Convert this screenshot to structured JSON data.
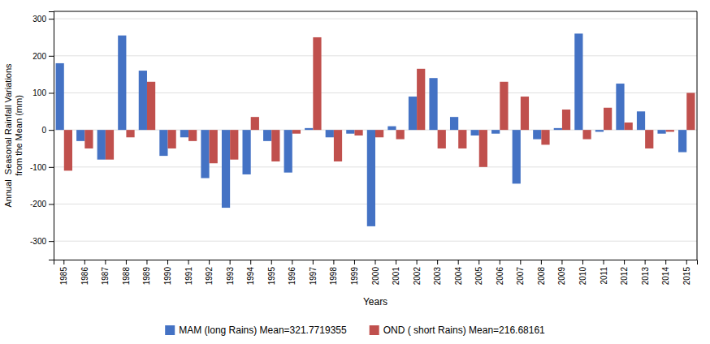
{
  "chart_data": {
    "type": "bar",
    "categories": [
      "1985",
      "1986",
      "1987",
      "1988",
      "1989",
      "1990",
      "1991",
      "1992",
      "1993",
      "1994",
      "1995",
      "1996",
      "1997",
      "1998",
      "1999",
      "2000",
      "2001",
      "2002",
      "2003",
      "2004",
      "2005",
      "2006",
      "2007",
      "2008",
      "2009",
      "2010",
      "2011",
      "2012",
      "2013",
      "2014",
      "2015"
    ],
    "series": [
      {
        "name": "MAM (long Rains) Mean=321.7719355",
        "color": "#4472C4",
        "values": [
          180,
          -30,
          -80,
          255,
          160,
          -70,
          -20,
          -130,
          -210,
          -120,
          -30,
          -115,
          5,
          -20,
          -10,
          -260,
          10,
          90,
          140,
          35,
          -15,
          -10,
          -145,
          -25,
          5,
          260,
          -5,
          125,
          50,
          -10,
          -60
        ]
      },
      {
        "name": "OND ( short Rains) Mean=216.68161",
        "color": "#C0504D",
        "values": [
          -110,
          -50,
          -80,
          -20,
          130,
          -50,
          -30,
          -90,
          -80,
          35,
          -85,
          -10,
          250,
          -85,
          -15,
          -20,
          -25,
          165,
          -50,
          -50,
          -100,
          130,
          90,
          -40,
          55,
          -25,
          60,
          20,
          -50,
          -5,
          100
        ]
      }
    ],
    "x_label": "Years",
    "y_label": "Annual  Seasonal Rainfall Variations\nfrom the Mean (mm)",
    "ylim": [
      -350,
      320
    ],
    "yticks": [
      -300,
      -200,
      -100,
      0,
      100,
      200,
      300
    ],
    "grid": true,
    "legend": "bottom"
  }
}
